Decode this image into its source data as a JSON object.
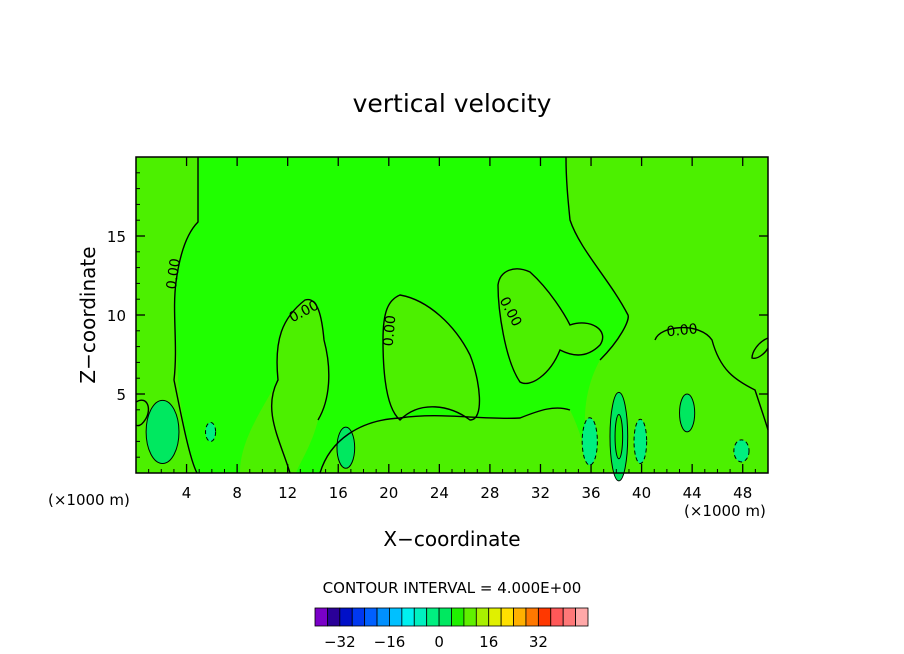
{
  "chart_data": {
    "type": "heatmap",
    "title": "vertical velocity",
    "xlabel": "X−coordinate",
    "ylabel": "Z−coordinate",
    "x_unit_left": "(×1000 m)",
    "x_unit_right": "(×1000 m)",
    "xlim": [
      0,
      50
    ],
    "ylim": [
      0,
      20
    ],
    "x_ticks": [
      4,
      8,
      12,
      16,
      20,
      24,
      28,
      32,
      36,
      40,
      44,
      48
    ],
    "y_ticks": [
      5,
      10,
      15
    ],
    "contour_interval_label": "CONTOUR INTERVAL = 4.000E+00",
    "contour_labels": [
      {
        "text": "0.00",
        "x": 3.0,
        "y": 12.6,
        "angle": -82
      },
      {
        "text": "0.00",
        "x": 13.3,
        "y": 10.2,
        "angle": -28
      },
      {
        "text": "0.00",
        "x": 20.1,
        "y": 9.0,
        "angle": -85
      },
      {
        "text": "0.00",
        "x": 29.6,
        "y": 10.2,
        "angle": 62
      },
      {
        "text": "0.00",
        "x": 43.2,
        "y": 9.0,
        "angle": -6
      }
    ],
    "regions": [
      {
        "level": 2,
        "x": 2.1,
        "y": 2.6,
        "rx": 1.3,
        "ry": 2.0
      },
      {
        "level": 2,
        "x": 38.2,
        "y": 2.3,
        "rx": 0.7,
        "ry": 2.8
      },
      {
        "level": 6,
        "x": 38.2,
        "y": 2.3,
        "rx": 0.3,
        "ry": 1.4
      },
      {
        "level": 2,
        "x": 16.6,
        "y": 1.6,
        "rx": 0.7,
        "ry": 1.3
      },
      {
        "level": 2,
        "x": 43.6,
        "y": 3.8,
        "rx": 0.6,
        "ry": 1.2
      },
      {
        "level": -2,
        "x": 35.9,
        "y": 2.0,
        "rx": 0.6,
        "ry": 1.5
      },
      {
        "level": -2,
        "x": 39.9,
        "y": 2.0,
        "rx": 0.5,
        "ry": 1.4
      },
      {
        "level": -2,
        "x": 5.9,
        "y": 2.6,
        "rx": 0.4,
        "ry": 0.6
      },
      {
        "level": -2,
        "x": 47.9,
        "y": 1.4,
        "rx": 0.6,
        "ry": 0.7
      }
    ],
    "colorbar": {
      "labels": [
        "−32",
        "−16",
        "0",
        "16",
        "32"
      ],
      "label_values": [
        -32,
        -16,
        0,
        16,
        32
      ],
      "levels_min": -40,
      "step": 4,
      "colors": [
        "#7a00c8",
        "#2a0098",
        "#0010c8",
        "#0038f0",
        "#0060ff",
        "#0090ff",
        "#00c0ff",
        "#00f0f0",
        "#00f0c0",
        "#00f080",
        "#00e860",
        "#20f000",
        "#60f000",
        "#a8f000",
        "#e0f000",
        "#ffe000",
        "#ffb000",
        "#ff7800",
        "#ff3800",
        "#ff5858",
        "#ff7878",
        "#ffa8a8"
      ]
    }
  }
}
